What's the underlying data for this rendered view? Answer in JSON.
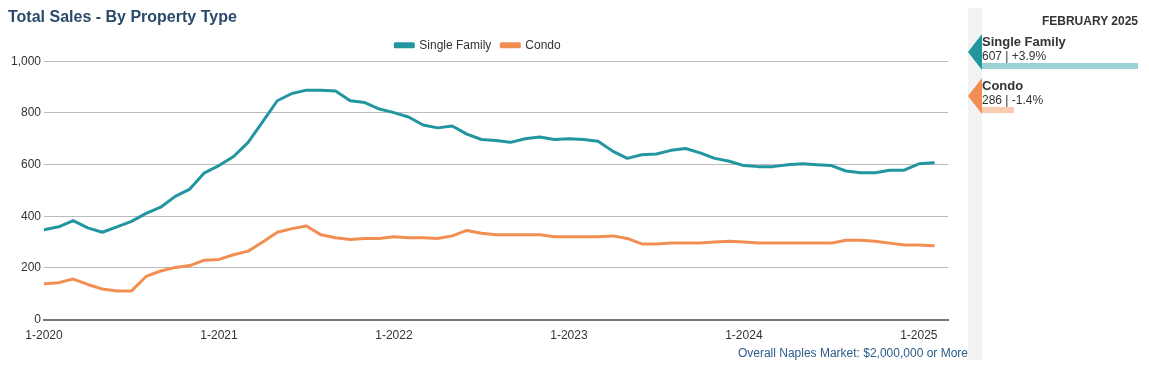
{
  "chart_data": {
    "type": "line",
    "title": "Total Sales - By Property Type",
    "x": [
      "2020-01",
      "2020-02",
      "2020-03",
      "2020-04",
      "2020-05",
      "2020-06",
      "2020-07",
      "2020-08",
      "2020-09",
      "2020-10",
      "2020-11",
      "2020-12",
      "2021-01",
      "2021-02",
      "2021-03",
      "2021-04",
      "2021-05",
      "2021-06",
      "2021-07",
      "2021-08",
      "2021-09",
      "2021-10",
      "2021-11",
      "2021-12",
      "2022-01",
      "2022-02",
      "2022-03",
      "2022-04",
      "2022-05",
      "2022-06",
      "2022-07",
      "2022-08",
      "2022-09",
      "2022-10",
      "2022-11",
      "2022-12",
      "2023-01",
      "2023-02",
      "2023-03",
      "2023-04",
      "2023-05",
      "2023-06",
      "2023-07",
      "2023-08",
      "2023-09",
      "2023-10",
      "2023-11",
      "2023-12",
      "2024-01",
      "2024-02",
      "2024-03",
      "2024-04",
      "2024-05",
      "2024-06",
      "2024-07",
      "2024-08",
      "2024-09",
      "2024-10",
      "2024-11",
      "2024-12",
      "2025-01",
      "2025-02"
    ],
    "series": [
      {
        "name": "Single Family",
        "color": "#2196a0",
        "values": [
          348,
          359,
          383,
          355,
          338,
          359,
          380,
          411,
          435,
          477,
          505,
          568,
          596,
          631,
          686,
          766,
          847,
          875,
          888,
          888,
          885,
          847,
          840,
          815,
          801,
          784,
          753,
          742,
          749,
          718,
          697,
          693,
          686,
          700,
          707,
          697,
          700,
          697,
          690,
          652,
          624,
          638,
          641,
          655,
          662,
          645,
          624,
          613,
          596,
          592,
          592,
          599,
          603,
          599,
          596,
          575,
          568,
          568,
          578,
          578,
          603,
          607
        ]
      },
      {
        "name": "Condo",
        "color": "#f28e52",
        "values": [
          139,
          143,
          157,
          136,
          118,
          111,
          111,
          167,
          188,
          202,
          209,
          230,
          233,
          251,
          265,
          300,
          338,
          352,
          362,
          328,
          317,
          310,
          314,
          314,
          321,
          317,
          317,
          314,
          324,
          345,
          334,
          328,
          328,
          328,
          328,
          321,
          321,
          321,
          321,
          324,
          314,
          293,
          293,
          296,
          296,
          296,
          300,
          303,
          300,
          296,
          296,
          296,
          296,
          296,
          296,
          307,
          307,
          303,
          296,
          289,
          289,
          286
        ]
      }
    ],
    "xlim": [
      "2020-01",
      "2025-03"
    ],
    "xticks": [
      {
        "value": "2020-01",
        "label": "1-2020"
      },
      {
        "value": "2021-01",
        "label": "1-2021"
      },
      {
        "value": "2022-01",
        "label": "1-2022"
      },
      {
        "value": "2023-01",
        "label": "1-2023"
      },
      {
        "value": "2024-01",
        "label": "1-2024"
      },
      {
        "value": "2025-01",
        "label": "1-2025"
      }
    ],
    "ylim": [
      0,
      1000
    ],
    "yticks": [
      0,
      200,
      400,
      600,
      800,
      {
        "value": 1000,
        "label": "1,000"
      }
    ],
    "grid": "y",
    "legend": "top",
    "marker": "none",
    "line_style": "solid",
    "annotations": [
      "Overall Naples Market: $2,000,000 or More",
      "FEBRUARY 2025",
      "607 | +3.9%",
      "286 | -1.4%"
    ]
  }
}
